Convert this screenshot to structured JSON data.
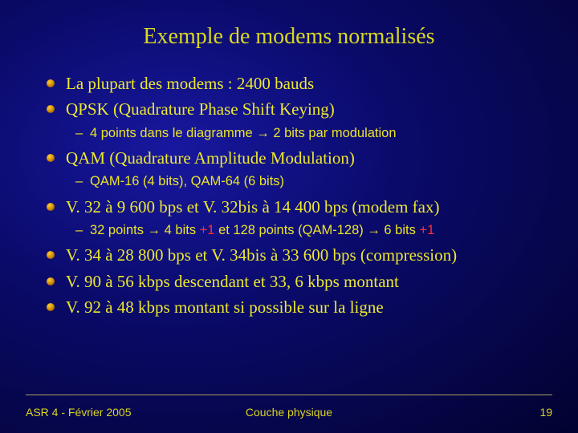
{
  "title": "Exemple de modems normalisés",
  "items": [
    {
      "level": 1,
      "text": "La plupart des modems : 2400 bauds"
    },
    {
      "level": 1,
      "text": "QPSK (Quadrature Phase Shift Keying)"
    },
    {
      "level": 2,
      "text": "4 points dans le diagramme → 2 bits par modulation"
    },
    {
      "level": 1,
      "text": "QAM (Quadrature Amplitude Modulation)"
    },
    {
      "level": 2,
      "text": "QAM-16 (4 bits), QAM-64 (6 bits)"
    },
    {
      "level": 1,
      "text": "V. 32 à 9 600 bps et V. 32bis à 14 400 bps (modem fax)"
    },
    {
      "level": 2,
      "html": "32 points → 4 bits <span class='plus1'>+1</span> et 128 points (QAM-128) → 6 bits <span class='plus1'>+1</span>"
    },
    {
      "level": 1,
      "text": "V. 34 à 28 800 bps et V. 34bis à 33 600 bps (compression)"
    },
    {
      "level": 1,
      "text": "V. 90 à 56 kbps descendant et 33, 6 kbps montant"
    },
    {
      "level": 1,
      "text": "V. 92 à 48 kbps montant si possible sur la ligne"
    }
  ],
  "footer": {
    "left": "ASR 4 - Février 2005",
    "center": "Couche physique",
    "page": "19"
  },
  "colors": {
    "text": "#ece830",
    "plus1": "#ff3030",
    "bg_inner": "#1818a0",
    "bg_outer": "#020230"
  }
}
